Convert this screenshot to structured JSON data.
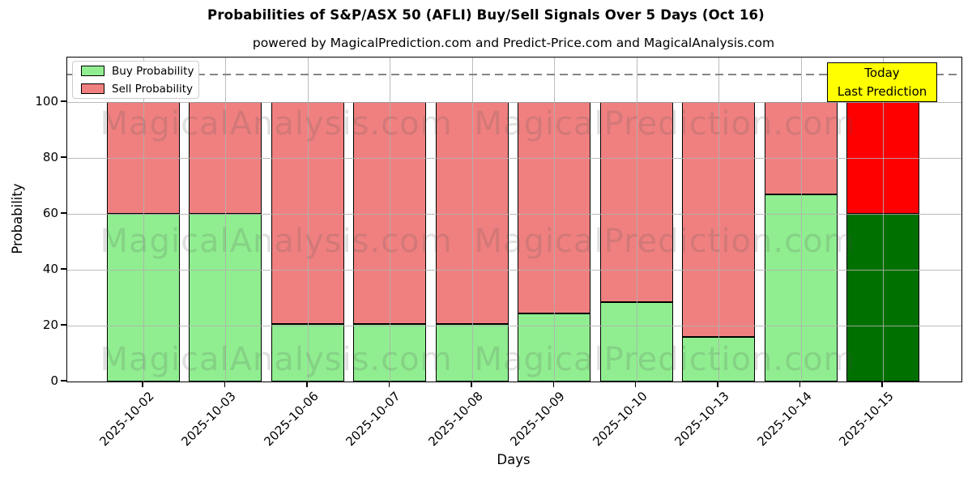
{
  "title": "Probabilities of S&P/ASX 50 (AFLI) Buy/Sell Signals Over 5 Days (Oct 16)",
  "subtitle": "powered by MagicalPrediction.com and Predict-Price.com and MagicalAnalysis.com",
  "axes": {
    "xlabel": "Days",
    "ylabel": "Probability",
    "yticks": [
      0,
      20,
      40,
      60,
      80,
      100
    ],
    "ylim": [
      0,
      116
    ],
    "grid": true,
    "threshold_line_y": 110
  },
  "legend": {
    "position": "upper left",
    "items": [
      {
        "label": "Buy Probability",
        "color": "#90ee90"
      },
      {
        "label": "Sell Probability",
        "color": "#f08080"
      }
    ]
  },
  "annotation": {
    "line1": "Today",
    "line2": "Last Prediction",
    "bg_color": "#ffff00",
    "text_color": "#000000"
  },
  "watermarks": {
    "left_text": "MagicalAnalysis.com",
    "right_text": "MagicalPrediction.com"
  },
  "colors": {
    "buy": "#90ee90",
    "sell": "#f08080",
    "buy_today": "#007000",
    "sell_today": "#ff0000",
    "bar_edge": "#000000",
    "grid": "#b0b0b0",
    "dashed_line": "#7f7f7f"
  },
  "chart_data": {
    "type": "bar",
    "stacked": true,
    "categories": [
      "2025-10-02",
      "2025-10-03",
      "2025-10-06",
      "2025-10-07",
      "2025-10-08",
      "2025-10-09",
      "2025-10-10",
      "2025-10-13",
      "2025-10-14",
      "2025-10-15"
    ],
    "series": [
      {
        "name": "Buy Probability",
        "values": [
          60,
          60,
          20.5,
          20.5,
          20.5,
          24.5,
          28.5,
          16,
          67,
          60
        ]
      },
      {
        "name": "Sell Probability",
        "values": [
          40,
          40,
          79.5,
          79.5,
          79.5,
          75.5,
          71.5,
          84,
          33,
          40
        ]
      }
    ],
    "title": "Probabilities of S&P/ASX 50 (AFLI) Buy/Sell Signals Over 5 Days (Oct 16)",
    "xlabel": "Days",
    "ylabel": "Probability",
    "ylim": [
      0,
      116
    ],
    "bar_total": 100,
    "highlight_last_bar": true,
    "legend_position": "upper left",
    "grid": true
  }
}
